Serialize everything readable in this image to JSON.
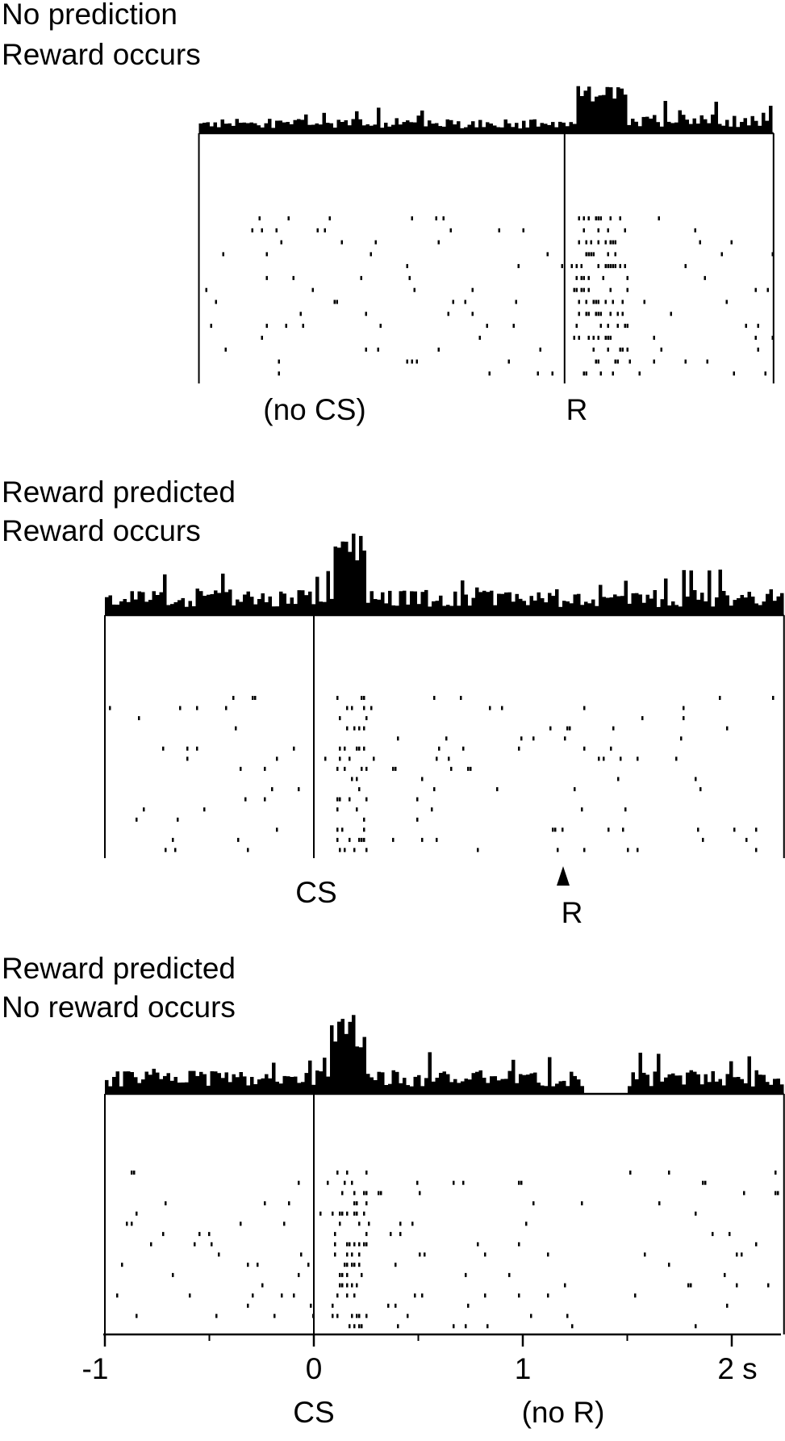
{
  "chart_data": {
    "type": "raster_histogram",
    "colors": {
      "ink": "#000000",
      "background": "#ffffff"
    },
    "panels": [
      {
        "id": "no-prediction",
        "title_lines": [
          "No prediction",
          "Reward occurs"
        ],
        "x_range": [
          -0.55,
          2.2
        ],
        "event_lines_at": [
          1.2
        ],
        "event_labels": [
          {
            "text": "(no CS)",
            "at": 0.0
          },
          {
            "text": "R",
            "at": 1.2
          }
        ],
        "raster_rows": 14,
        "rate_profile": [
          {
            "from": -0.55,
            "to": 1.25,
            "level": 1.0
          },
          {
            "from": 1.25,
            "to": 1.5,
            "level": 5.0
          },
          {
            "from": 1.5,
            "to": 2.2,
            "level": 1.3
          }
        ]
      },
      {
        "id": "reward-predicted-reward-occurs",
        "title_lines": [
          "Reward predicted",
          "Reward occurs"
        ],
        "x_range": [
          -1.0,
          2.25
        ],
        "event_lines_at": [
          0.0
        ],
        "event_labels": [
          {
            "text": "CS",
            "at": 0.0
          },
          {
            "text": "R",
            "at": 1.25
          }
        ],
        "reward_marker_at": 1.25,
        "raster_rows": 16,
        "rate_profile": [
          {
            "from": -1.0,
            "to": 0.1,
            "level": 1.0
          },
          {
            "from": 0.1,
            "to": 0.25,
            "level": 5.5
          },
          {
            "from": 0.25,
            "to": 2.25,
            "level": 1.0
          }
        ]
      },
      {
        "id": "reward-predicted-no-reward",
        "title_lines": [
          "Reward predicted",
          "No reward occurs"
        ],
        "x_range": [
          -1.0,
          2.25
        ],
        "event_lines_at": [
          0.0
        ],
        "event_labels": [
          {
            "text": "CS",
            "at": 0.0
          },
          {
            "text": "(no R)",
            "at": 1.2
          }
        ],
        "raster_rows": 16,
        "rate_profile": [
          {
            "from": -1.0,
            "to": 0.08,
            "level": 1.0
          },
          {
            "from": 0.08,
            "to": 0.25,
            "level": 5.0
          },
          {
            "from": 0.25,
            "to": 1.3,
            "level": 1.0
          },
          {
            "from": 1.3,
            "to": 1.5,
            "level": 0.0
          },
          {
            "from": 1.5,
            "to": 2.25,
            "level": 1.0
          }
        ]
      }
    ],
    "shared_x_axis": {
      "ticks": [
        -1,
        0,
        1,
        2
      ],
      "tick_labels": [
        "-1",
        "0",
        "1",
        "2 s"
      ],
      "minor_ticks": [
        -0.5,
        0.5,
        1.5
      ]
    }
  }
}
